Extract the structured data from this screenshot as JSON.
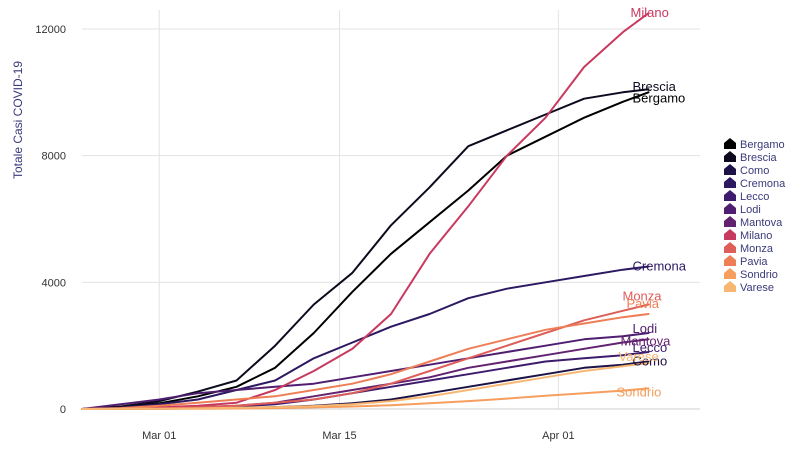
{
  "chart_data": {
    "type": "line",
    "title": "",
    "xlabel": "",
    "ylabel": "Totale Casi COVID-19",
    "x_ticks": [
      "Mar 01",
      "Mar 15",
      "Apr 01"
    ],
    "y_ticks": [
      "0",
      "4000",
      "8000",
      "12000"
    ],
    "xlim": [
      "2020-02-24",
      "2020-04-12"
    ],
    "ylim": [
      0,
      12600
    ],
    "grid": true,
    "legend_position": "right",
    "x": [
      "2020-02-24",
      "2020-02-27",
      "2020-03-01",
      "2020-03-04",
      "2020-03-07",
      "2020-03-10",
      "2020-03-13",
      "2020-03-16",
      "2020-03-19",
      "2020-03-22",
      "2020-03-25",
      "2020-03-28",
      "2020-03-31",
      "2020-04-03",
      "2020-04-06",
      "2020-04-08"
    ],
    "series": [
      {
        "name": "Bergamo",
        "color": "#000000",
        "end_label": "Bergamo",
        "values": [
          0,
          60,
          180,
          400,
          700,
          1300,
          2400,
          3700,
          4900,
          5900,
          6900,
          8000,
          8600,
          9200,
          9700,
          10000
        ]
      },
      {
        "name": "Brescia",
        "color": "#0d0a1e",
        "end_label": "Brescia",
        "values": [
          0,
          80,
          250,
          550,
          900,
          2000,
          3300,
          4300,
          5800,
          7000,
          8300,
          8800,
          9300,
          9800,
          10000,
          10100
        ]
      },
      {
        "name": "Como",
        "color": "#1c1245",
        "end_label": "Como",
        "values": [
          0,
          5,
          10,
          20,
          30,
          60,
          100,
          180,
          300,
          500,
          700,
          900,
          1100,
          1300,
          1400,
          1500
        ]
      },
      {
        "name": "Cremona",
        "color": "#2d1862",
        "end_label": "Cremona",
        "values": [
          0,
          40,
          150,
          300,
          600,
          900,
          1600,
          2100,
          2600,
          3000,
          3500,
          3800,
          4000,
          4200,
          4400,
          4500
        ]
      },
      {
        "name": "Lecco",
        "color": "#3d1c6e",
        "end_label": "Lecco",
        "values": [
          0,
          5,
          20,
          50,
          80,
          150,
          300,
          500,
          700,
          900,
          1100,
          1300,
          1500,
          1600,
          1700,
          1800
        ]
      },
      {
        "name": "Lodi",
        "color": "#4f1e70",
        "end_label": "Lodi",
        "values": [
          0,
          150,
          300,
          500,
          600,
          700,
          800,
          1000,
          1200,
          1400,
          1600,
          1800,
          2000,
          2200,
          2300,
          2400
        ]
      },
      {
        "name": "Mantova",
        "color": "#63226f",
        "end_label": "Mantova",
        "values": [
          0,
          10,
          30,
          60,
          100,
          200,
          400,
          600,
          800,
          1000,
          1300,
          1500,
          1700,
          1900,
          2100,
          2200
        ]
      },
      {
        "name": "Milano",
        "color": "#c8395f",
        "end_label": "Milano",
        "values": [
          0,
          20,
          50,
          100,
          200,
          600,
          1200,
          1900,
          3000,
          4900,
          6400,
          8000,
          9200,
          10800,
          11900,
          12500
        ]
      },
      {
        "name": "Monza",
        "color": "#de5e5a",
        "end_label": "Monza",
        "values": [
          0,
          10,
          20,
          50,
          100,
          200,
          300,
          500,
          800,
          1200,
          1600,
          2000,
          2400,
          2800,
          3100,
          3300
        ]
      },
      {
        "name": "Pavia",
        "color": "#ee7e55",
        "end_label": "Pavia",
        "values": [
          0,
          30,
          100,
          200,
          300,
          400,
          600,
          800,
          1100,
          1500,
          1900,
          2200,
          2500,
          2700,
          2900,
          3000
        ]
      },
      {
        "name": "Sondrio",
        "color": "#f59e5e",
        "end_label": "Sondrio",
        "values": [
          0,
          2,
          5,
          10,
          15,
          30,
          50,
          80,
          120,
          180,
          250,
          330,
          420,
          500,
          580,
          650
        ]
      },
      {
        "name": "Varese",
        "color": "#f7b772",
        "end_label": "Varese",
        "values": [
          0,
          5,
          10,
          20,
          40,
          60,
          90,
          150,
          250,
          400,
          600,
          800,
          1000,
          1200,
          1350,
          1450
        ]
      }
    ]
  }
}
